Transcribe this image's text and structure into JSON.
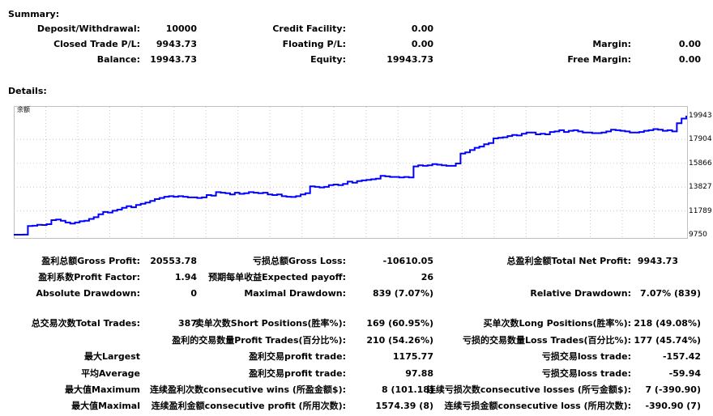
{
  "summary": {
    "title": "Summary:",
    "deposit_label": "Deposit/Withdrawal:",
    "deposit_value": "10000",
    "closed_label": "Closed Trade P/L:",
    "closed_value": "9943.73",
    "balance_label": "Balance:",
    "balance_value": "19943.73",
    "credit_label": "Credit Facility:",
    "credit_value": "0.00",
    "floating_label": "Floating P/L:",
    "floating_value": "0.00",
    "equity_label": "Equity:",
    "equity_value": "19943.73",
    "margin_label": "Margin:",
    "margin_value": "0.00",
    "free_margin_label": "Free Margin:",
    "free_margin_value": "0.00"
  },
  "details": {
    "title": "Details:",
    "chart_label": "余额"
  },
  "chart_data": {
    "type": "line",
    "series": [
      {
        "name": "余额",
        "color": "#0000ff",
        "values": [
          9750,
          9750,
          9755,
          10500,
          10520,
          10600,
          10580,
          10650,
          11000,
          11050,
          10950,
          10800,
          10700,
          10800,
          10900,
          10950,
          11100,
          11250,
          11500,
          11700,
          11650,
          11800,
          11900,
          12050,
          12200,
          12100,
          12300,
          12400,
          12500,
          12650,
          12800,
          12900,
          13000,
          13050,
          13000,
          13050,
          13000,
          12950,
          12950,
          12900,
          12950,
          13150,
          13100,
          13400,
          13350,
          13300,
          13200,
          13350,
          13250,
          13300,
          13400,
          13350,
          13300,
          13350,
          13200,
          13150,
          13200,
          13050,
          13000,
          12980,
          13050,
          13200,
          13300,
          13900,
          13850,
          13800,
          13850,
          14000,
          14050,
          14000,
          14100,
          14300,
          14200,
          14350,
          14400,
          14450,
          14500,
          14550,
          14800,
          14750,
          14700,
          14700,
          14650,
          14700,
          14650,
          15600,
          15700,
          15650,
          15700,
          15800,
          15750,
          15700,
          15650,
          15650,
          15850,
          16700,
          16800,
          17000,
          17200,
          17300,
          17500,
          17600,
          18000,
          18050,
          18100,
          18200,
          18300,
          18250,
          18400,
          18500,
          18500,
          18350,
          18400,
          18350,
          18550,
          18600,
          18700,
          18550,
          18650,
          18700,
          18600,
          18500,
          18500,
          18450,
          18450,
          18500,
          18600,
          18750,
          18700,
          18650,
          18600,
          18500,
          18500,
          18550,
          18650,
          18700,
          18800,
          18750,
          18650,
          18700,
          18600,
          19300,
          19700,
          19943
        ]
      }
    ],
    "ylim": [
      9750,
      19943
    ],
    "y_ticks": [
      "19943",
      "17904",
      "15866",
      "13827",
      "11789",
      "9750"
    ],
    "grid": true
  },
  "stats": {
    "gross_profit_label": "盈利总额Gross Profit:",
    "gross_profit_value": "20553.78",
    "gross_loss_label": "亏损总额Gross Loss:",
    "gross_loss_value": "-10610.05",
    "net_profit_label": "总盈利金额Total Net Profit:",
    "net_profit_value": "9943.73",
    "profit_factor_label": "盈利系数Profit Factor:",
    "profit_factor_value": "1.94",
    "expected_payoff_label": "预期每单收益Expected payoff:",
    "expected_payoff_value": "26",
    "abs_dd_label": "Absolute Drawdown:",
    "abs_dd_value": "0",
    "max_dd_label": "Maximal Drawdown:",
    "max_dd_value": "839 (7.07%)",
    "rel_dd_label": "Relative Drawdown:",
    "rel_dd_value": "7.07% (839)",
    "total_trades_label": "总交易次数Total Trades:",
    "total_trades_value": "387",
    "short_label": "卖单次数Short Positions(胜率%):",
    "short_value": "169 (60.95%)",
    "long_label": "买单次数Long Positions(胜率%):",
    "long_value": "218 (49.08%)",
    "profit_trades_label": "盈利的交易数量Profit Trades(百分比%):",
    "profit_trades_value": "210 (54.26%)",
    "loss_trades_label": "亏损的交易数量Loss Trades(百分比%):",
    "loss_trades_value": "177 (45.74%)",
    "largest_label": "最大Largest",
    "largest_profit_label": "盈利交易profit trade:",
    "largest_profit_value": "1175.77",
    "largest_loss_label": "亏损交易loss trade:",
    "largest_loss_value": "-157.42",
    "average_label": "平均Average",
    "average_profit_label": "盈利交易profit trade:",
    "average_profit_value": "97.88",
    "average_loss_label": "亏损交易loss trade:",
    "average_loss_value": "-59.94",
    "maximum_label": "最大值Maximum",
    "cons_wins_label": "连续盈利次数consecutive wins (所盈金额$):",
    "cons_wins_value": "8 (101.18)",
    "cons_losses_label": "连续亏损次数consecutive losses (所亏金额$):",
    "cons_losses_value": "7 (-390.90)",
    "maximal_label": "最大值Maximal",
    "cons_profit_label": "连续盈利金额consecutive profit (所用次数):",
    "cons_profit_value": "1574.39 (8)",
    "cons_loss_label": "连续亏损金额consecutive loss (所用次数):",
    "cons_loss_value": "-390.90 (7)"
  }
}
